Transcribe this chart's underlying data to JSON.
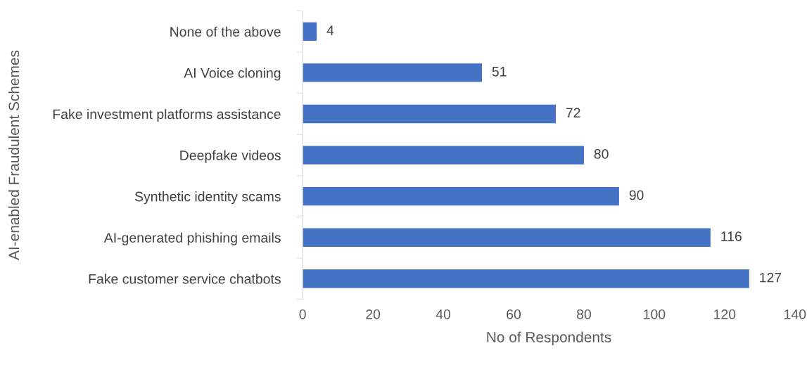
{
  "chart_data": {
    "type": "bar",
    "orientation": "horizontal",
    "xlabel": "No of Respondents",
    "ylabel": "AI-enabled Fraudulent Schemes",
    "categories": [
      "None of the above",
      "AI Voice cloning",
      "Fake investment platforms assistance",
      "Deepfake videos",
      "Synthetic identity scams",
      "AI-generated phishing emails",
      "Fake customer service chatbots"
    ],
    "values": [
      4,
      51,
      72,
      80,
      90,
      116,
      127
    ],
    "color": "#4472c4",
    "xlim": [
      0,
      140
    ],
    "xticks": [
      0,
      20,
      40,
      60,
      80,
      100,
      120,
      140
    ],
    "grid": false,
    "data_labels": true
  }
}
